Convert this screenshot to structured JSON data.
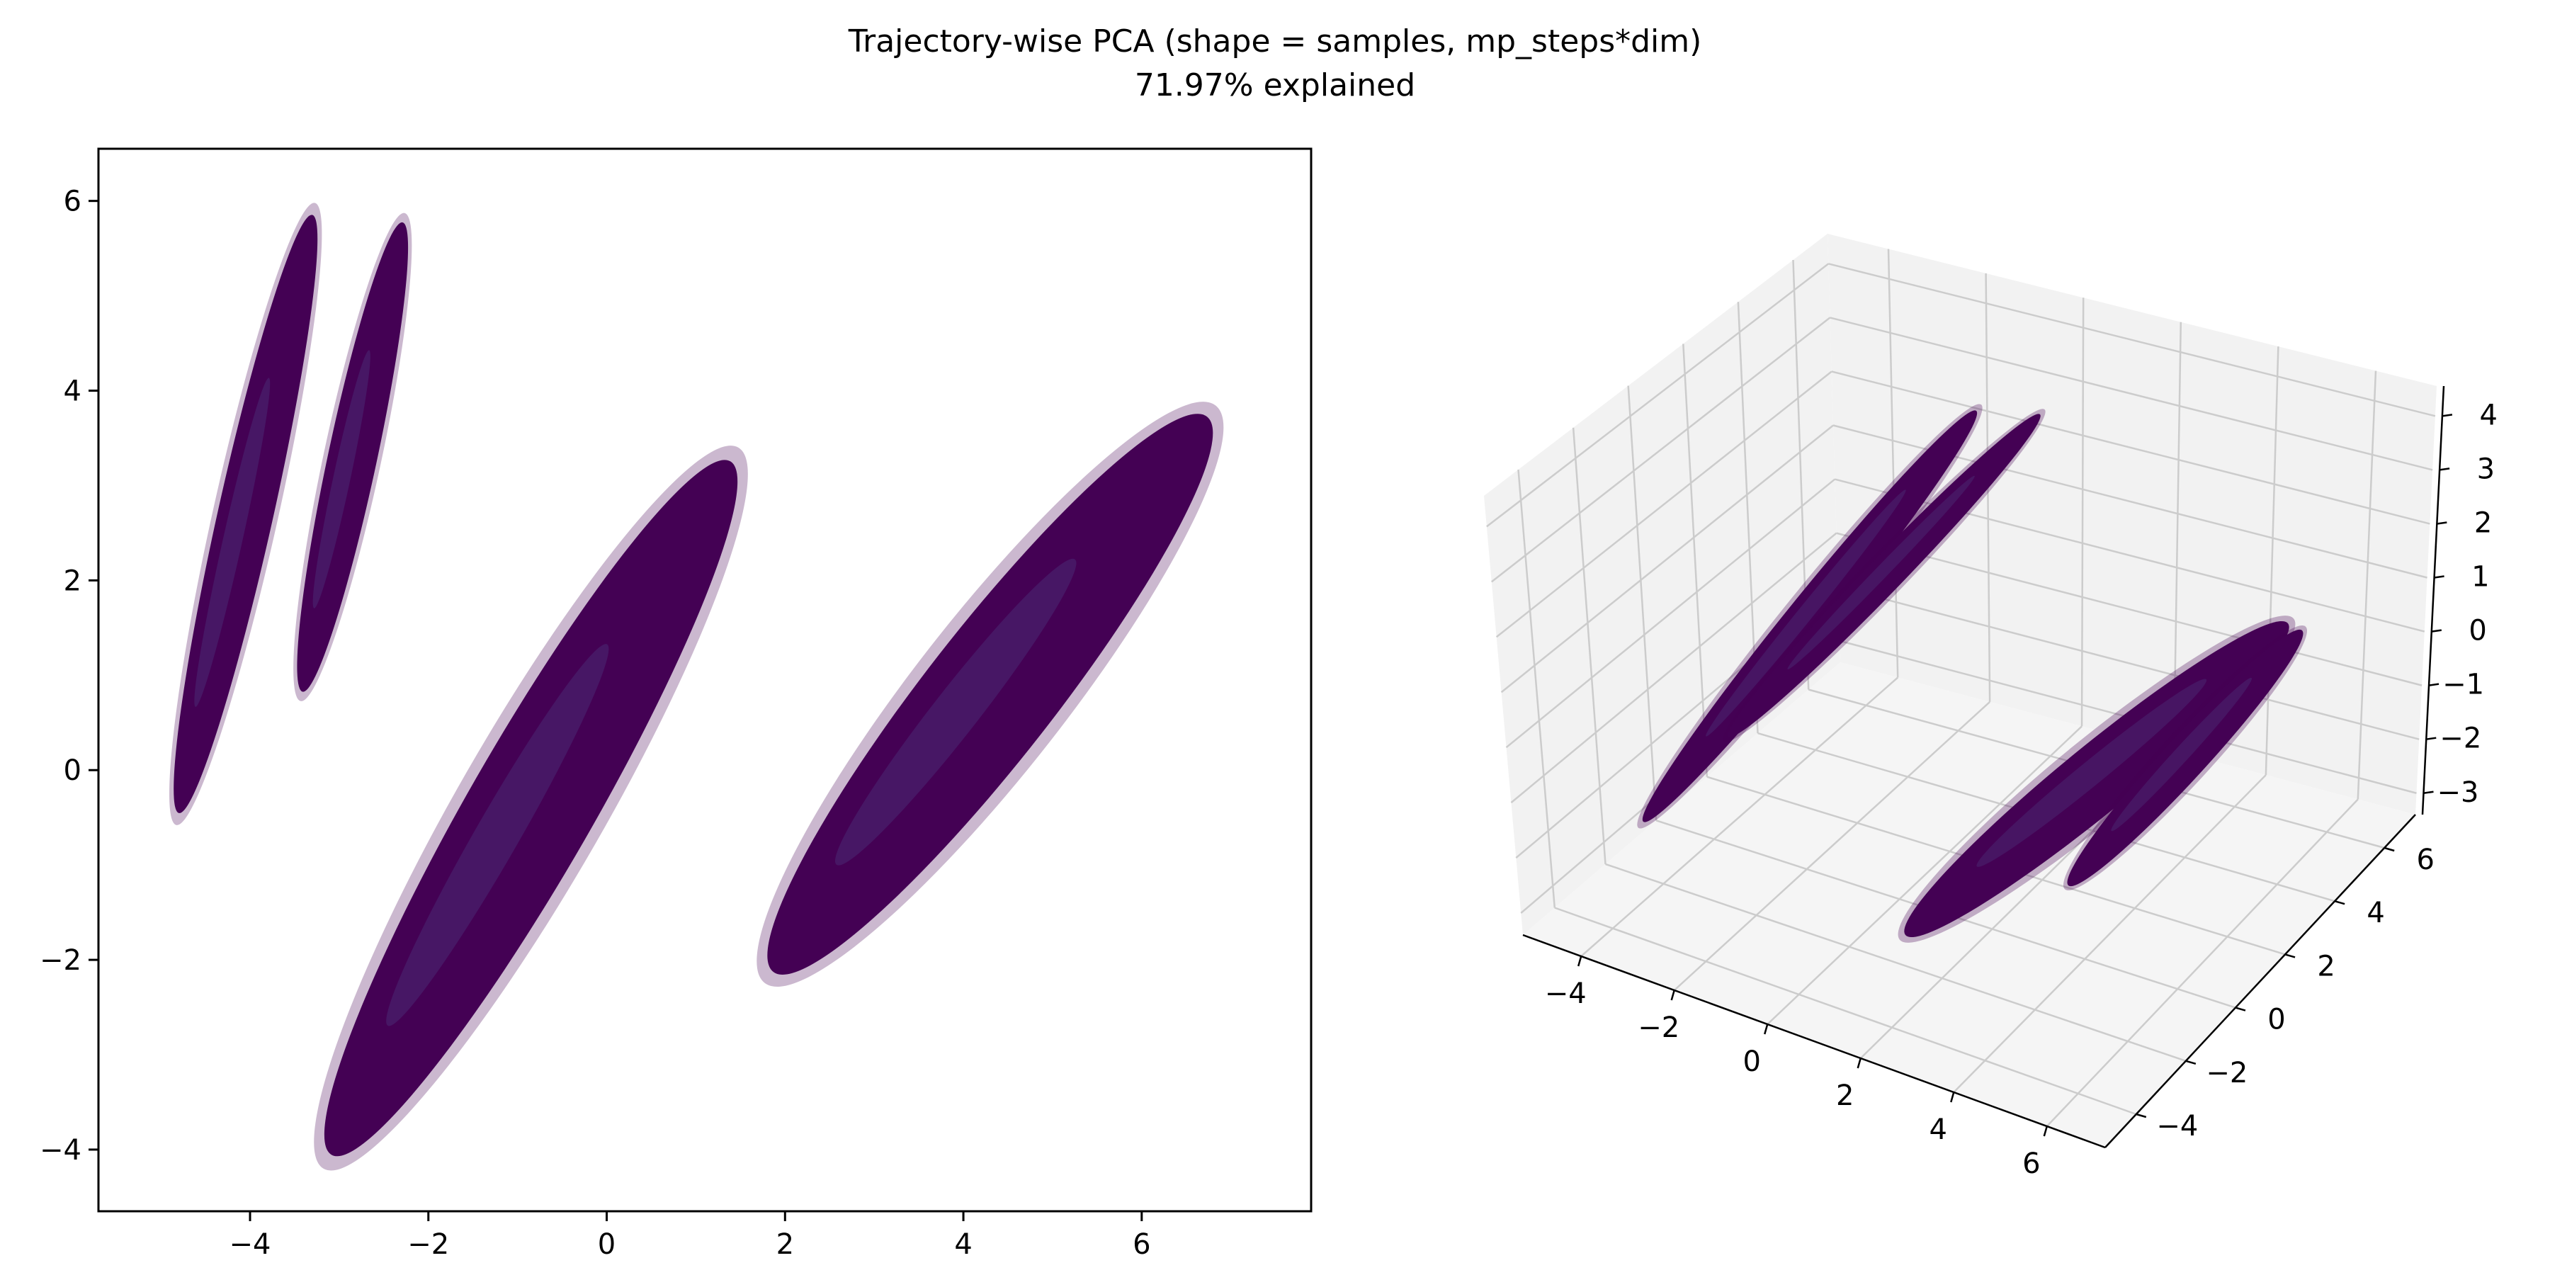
{
  "title": "Trajectory-wise PCA (shape = samples, mp_steps*dim)",
  "subtitle": "71.97% explained",
  "colors": {
    "points": "#440154",
    "points_light": "#4a2a72",
    "pane": "#f2f2f2",
    "grid": "#cccccc"
  },
  "chart_data": [
    {
      "type": "scatter",
      "xlabel": "",
      "ylabel": "",
      "xlim": [
        -5.7,
        7.9
      ],
      "ylim": [
        -4.65,
        6.55
      ],
      "xticks": [
        "-4",
        "-2",
        "0",
        "2",
        "4",
        "6"
      ],
      "yticks": [
        "-4",
        "-2",
        "0",
        "2",
        "4",
        "6"
      ],
      "grid": false,
      "clusters": [
        {
          "center": [
            -4.05,
            2.7
          ],
          "direction": [
            0.23,
            0.97
          ],
          "length": 6.5,
          "width": 0.62
        },
        {
          "center": [
            -2.85,
            3.3
          ],
          "direction": [
            0.22,
            0.97
          ],
          "length": 5.1,
          "width": 0.55
        },
        {
          "center": [
            -0.85,
            -0.4
          ],
          "direction": [
            0.52,
            0.85
          ],
          "length": 8.6,
          "width": 1.4
        },
        {
          "center": [
            4.3,
            0.8
          ],
          "direction": [
            0.64,
            0.77
          ],
          "length": 7.6,
          "width": 1.45
        }
      ]
    },
    {
      "type": "scatter",
      "projection": "3d",
      "xlabel": "",
      "ylabel": "",
      "zlabel": "",
      "xticks": [
        "-4",
        "-2",
        "0",
        "2",
        "4",
        "6"
      ],
      "yticks": [
        "-4",
        "-2",
        "0",
        "2",
        "4",
        "6"
      ],
      "zticks": [
        "-3",
        "-2",
        "-1",
        "0",
        "1",
        "2",
        "3",
        "4"
      ],
      "grid": true,
      "clusters": [
        {
          "from": [
            2320,
            1160
          ],
          "to": [
            2790,
            580
          ],
          "width": 60
        },
        {
          "from": [
            2440,
            1040
          ],
          "to": [
            2880,
            585
          ],
          "width": 50
        },
        {
          "from": [
            2690,
            1320
          ],
          "to": [
            3230,
            880
          ],
          "width": 95
        },
        {
          "from": [
            2920,
            1250
          ],
          "to": [
            3250,
            890
          ],
          "width": 60
        }
      ]
    }
  ]
}
